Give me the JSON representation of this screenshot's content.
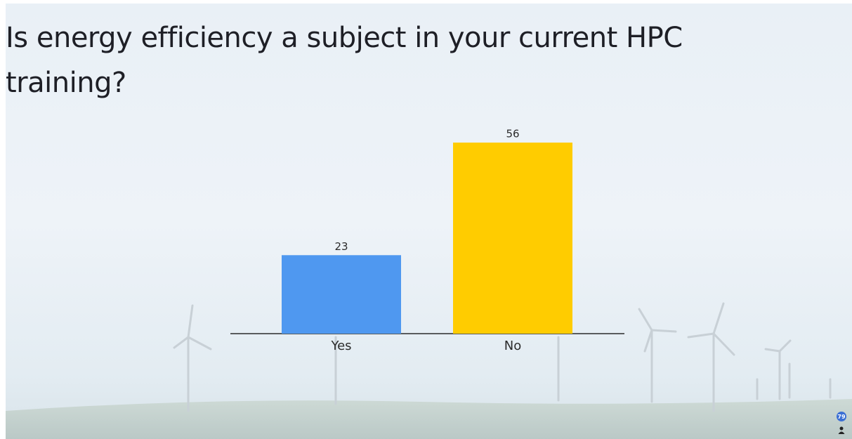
{
  "chart_data": {
    "type": "bar",
    "title": "Is energy efficiency a subject in your current HPC training?",
    "categories": [
      "Yes",
      "No"
    ],
    "values": [
      23,
      56
    ],
    "colors": [
      "#4f98f0",
      "#ffcc00"
    ],
    "participants": 79
  }
}
